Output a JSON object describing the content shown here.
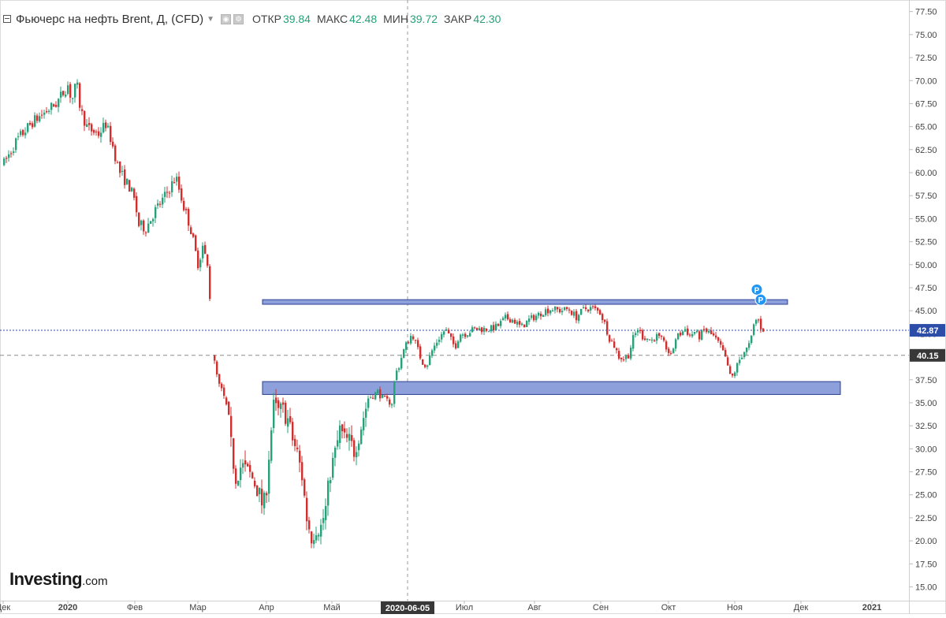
{
  "header": {
    "title": "Фьючерс на нефть Brent, Д, (CFD)",
    "open_label": "ОТКР",
    "open_value": "39.84",
    "high_label": "МАКС",
    "high_value": "42.48",
    "low_label": "МИН",
    "low_value": "39.72",
    "close_label": "ЗАКР",
    "close_value": "42.30"
  },
  "logo": {
    "brand": "Investing",
    "tld": ".com"
  },
  "colors": {
    "up": "#26a17a",
    "down": "#d12e2e",
    "zone_fill": "#8ea0db",
    "zone_stroke": "#2b3f90",
    "price_tag": "#2d4ea8",
    "crosshair_tag": "#383838",
    "marker": "#2196f3"
  },
  "chart_data": {
    "type": "candlestick",
    "ylim": [
      13.5,
      78.5
    ],
    "yticks": [
      "15.00",
      "17.50",
      "20.00",
      "22.50",
      "25.00",
      "27.50",
      "30.00",
      "32.50",
      "35.00",
      "37.50",
      "40.00",
      "42.50",
      "45.00",
      "47.50",
      "50.00",
      "52.50",
      "55.00",
      "57.50",
      "60.00",
      "62.50",
      "65.00",
      "67.50",
      "70.00",
      "72.50",
      "75.00",
      "77.50"
    ],
    "xticks": [
      {
        "label": "Дек",
        "x": 4
      },
      {
        "label": "2020",
        "x": 86,
        "bold": true
      },
      {
        "label": "Фев",
        "x": 171
      },
      {
        "label": "Мар",
        "x": 251
      },
      {
        "label": "Апр",
        "x": 338
      },
      {
        "label": "Май",
        "x": 421
      },
      {
        "label": "2020-06-05",
        "x": 517,
        "highlight": true
      },
      {
        "label": "Июл",
        "x": 589
      },
      {
        "label": "Авг",
        "x": 678
      },
      {
        "label": "Сен",
        "x": 762
      },
      {
        "label": "Окт",
        "x": 848
      },
      {
        "label": "Ноя",
        "x": 932
      },
      {
        "label": "Дек",
        "x": 1016
      },
      {
        "label": "2021",
        "x": 1106,
        "bold": true
      }
    ],
    "price_labels": [
      {
        "value": "42.87",
        "y": 42.87
      },
      {
        "value": "40.15",
        "y": 40.15
      }
    ],
    "zones": [
      {
        "y_low": 45.7,
        "y_high": 46.2,
        "x_start": 333,
        "x_end": 999
      },
      {
        "y_low": 35.9,
        "y_high": 37.3,
        "x_start": 333,
        "x_end": 1066
      }
    ],
    "crosshair_x": 517,
    "markers": [
      {
        "label": "P",
        "x": 960,
        "y": 47.3
      },
      {
        "label": "P",
        "x": 965,
        "y": 46.2
      }
    ],
    "anchors": [
      [
        4,
        61.0
      ],
      [
        20,
        63.5
      ],
      [
        40,
        65.5
      ],
      [
        70,
        67.5
      ],
      [
        85,
        69.5
      ],
      [
        90,
        67.8
      ],
      [
        96,
        69.8
      ],
      [
        101,
        66.8
      ],
      [
        110,
        64.8
      ],
      [
        124,
        64.2
      ],
      [
        133,
        65.3
      ],
      [
        140,
        63.5
      ],
      [
        150,
        60.2
      ],
      [
        164,
        58.3
      ],
      [
        170,
        56.8
      ],
      [
        175,
        54.3
      ],
      [
        184,
        54.0
      ],
      [
        195,
        55.8
      ],
      [
        205,
        57.0
      ],
      [
        222,
        59.5
      ],
      [
        232,
        56.3
      ],
      [
        240,
        54.2
      ],
      [
        250,
        50.0
      ],
      [
        256,
        52.0
      ],
      [
        262,
        49.8
      ],
      [
        265,
        46.5
      ],
      [
        266,
        45.3
      ],
      [
        270,
        39.8
      ],
      [
        276,
        37.0
      ],
      [
        282,
        36.0
      ],
      [
        288,
        33.5
      ],
      [
        293,
        29.5
      ],
      [
        298,
        27.0
      ],
      [
        305,
        28.2
      ],
      [
        312,
        27.5
      ],
      [
        318,
        27.0
      ],
      [
        326,
        25.5
      ],
      [
        333,
        23.5
      ],
      [
        337,
        26.0
      ],
      [
        341,
        30.5
      ],
      [
        346,
        34.5
      ],
      [
        352,
        34.0
      ],
      [
        357,
        34.2
      ],
      [
        363,
        33.5
      ],
      [
        370,
        31.0
      ],
      [
        376,
        29.5
      ],
      [
        382,
        27.0
      ],
      [
        388,
        22.5
      ],
      [
        394,
        20.5
      ],
      [
        400,
        21.5
      ],
      [
        406,
        21.5
      ],
      [
        412,
        23.5
      ],
      [
        418,
        27.5
      ],
      [
        424,
        29.5
      ],
      [
        430,
        32.0
      ],
      [
        436,
        31.0
      ],
      [
        442,
        30.8
      ],
      [
        448,
        29.8
      ],
      [
        454,
        31.5
      ],
      [
        460,
        33.5
      ],
      [
        466,
        35.5
      ],
      [
        472,
        35.8
      ],
      [
        478,
        36.2
      ],
      [
        484,
        35.5
      ],
      [
        490,
        35.2
      ],
      [
        496,
        35.0
      ],
      [
        500,
        38.0
      ],
      [
        505,
        39.0
      ],
      [
        510,
        40.5
      ],
      [
        516,
        41.7
      ],
      [
        522,
        42.5
      ],
      [
        528,
        41.0
      ],
      [
        534,
        39.5
      ],
      [
        540,
        39.0
      ],
      [
        546,
        40.5
      ],
      [
        552,
        41.5
      ],
      [
        558,
        42.3
      ],
      [
        564,
        43.0
      ],
      [
        570,
        42.0
      ],
      [
        576,
        41.0
      ],
      [
        582,
        42.5
      ],
      [
        590,
        42.5
      ],
      [
        600,
        43.0
      ],
      [
        610,
        43.0
      ],
      [
        620,
        43.0
      ],
      [
        630,
        43.3
      ],
      [
        640,
        44.2
      ],
      [
        650,
        44.0
      ],
      [
        660,
        43.2
      ],
      [
        670,
        44.0
      ],
      [
        680,
        44.5
      ],
      [
        690,
        45.0
      ],
      [
        700,
        45.2
      ],
      [
        710,
        45.0
      ],
      [
        720,
        45.2
      ],
      [
        730,
        44.3
      ],
      [
        740,
        45.2
      ],
      [
        750,
        45.3
      ],
      [
        760,
        44.8
      ],
      [
        766,
        43.6
      ],
      [
        772,
        42.0
      ],
      [
        778,
        41.2
      ],
      [
        784,
        40.0
      ],
      [
        790,
        39.8
      ],
      [
        796,
        40.2
      ],
      [
        802,
        42.0
      ],
      [
        808,
        43.0
      ],
      [
        814,
        42.2
      ],
      [
        820,
        42.0
      ],
      [
        826,
        41.8
      ],
      [
        832,
        42.2
      ],
      [
        838,
        41.8
      ],
      [
        844,
        41.0
      ],
      [
        850,
        40.0
      ],
      [
        856,
        42.0
      ],
      [
        862,
        42.5
      ],
      [
        868,
        43.0
      ],
      [
        874,
        42.3
      ],
      [
        880,
        42.7
      ],
      [
        886,
        42.2
      ],
      [
        892,
        42.9
      ],
      [
        898,
        42.6
      ],
      [
        904,
        42.2
      ],
      [
        910,
        41.5
      ],
      [
        916,
        40.5
      ],
      [
        922,
        39.0
      ],
      [
        926,
        37.5
      ],
      [
        930,
        38.2
      ],
      [
        936,
        39.5
      ],
      [
        942,
        40.5
      ],
      [
        948,
        41.0
      ],
      [
        952,
        42.0
      ],
      [
        956,
        43.8
      ],
      [
        960,
        44.2
      ],
      [
        964,
        43.2
      ],
      [
        968,
        42.9
      ]
    ]
  }
}
